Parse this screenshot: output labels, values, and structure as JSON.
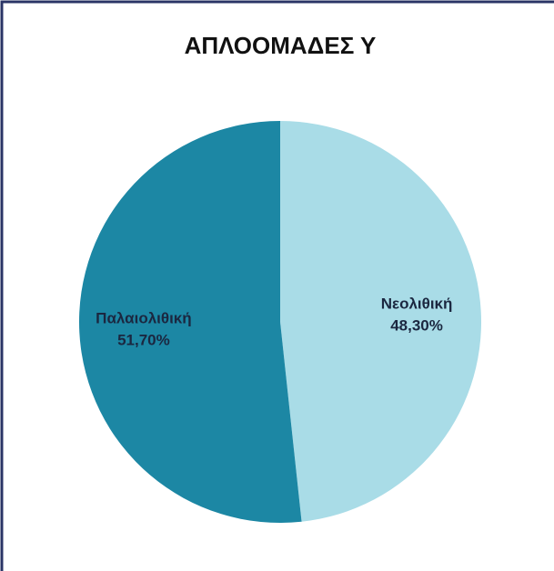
{
  "chart_data": {
    "type": "pie",
    "title": "ΑΠΛΟΟΜΑΔΕΣ Υ",
    "categories": [
      "Νεολιθική",
      "Παλαιολιθική"
    ],
    "values": [
      48.3,
      51.7
    ],
    "value_labels": [
      "48,30%",
      "51,70%"
    ],
    "colors": [
      "#a9dce7",
      "#1c87a4"
    ]
  }
}
